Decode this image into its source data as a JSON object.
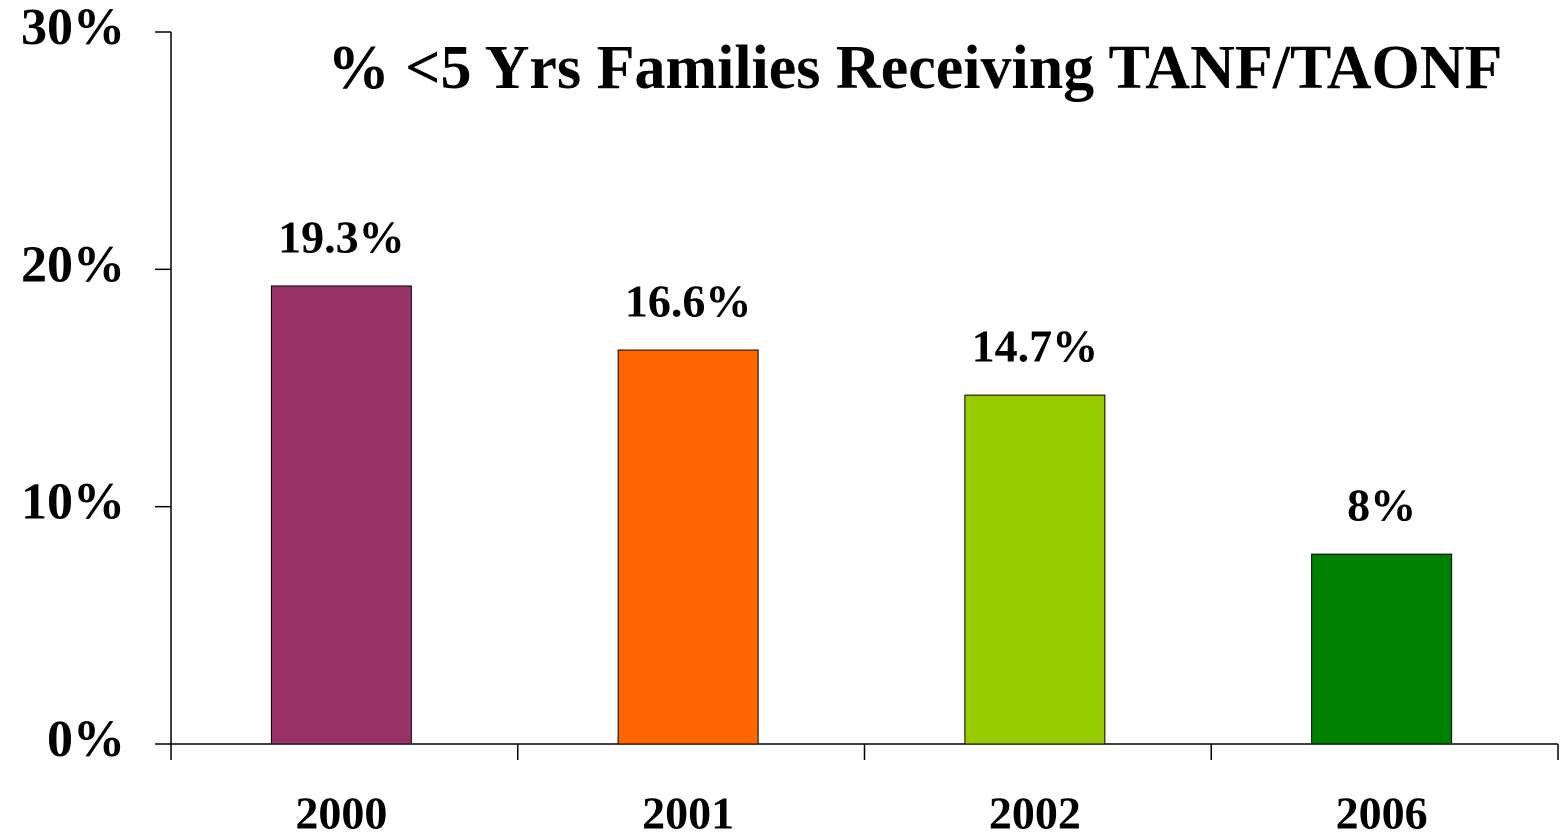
{
  "chart_data": {
    "type": "bar",
    "title": "% <5 Yrs Families Receiving TANF/TAONF",
    "categories": [
      "2000",
      "2001",
      "2002",
      "2006"
    ],
    "values": [
      19.3,
      16.6,
      14.7,
      8
    ],
    "value_labels": [
      "19.3%",
      "16.6%",
      "14.7%",
      "8%"
    ],
    "colors": [
      "#993366",
      "#ff6600",
      "#99cc00",
      "#008000"
    ],
    "ylim": [
      0,
      30
    ],
    "yticks": [
      {
        "value": 0,
        "label": "0%"
      },
      {
        "value": 10,
        "label": "10%"
      },
      {
        "value": 20,
        "label": "20%"
      },
      {
        "value": 30,
        "label": "30%"
      }
    ],
    "grid": false
  }
}
